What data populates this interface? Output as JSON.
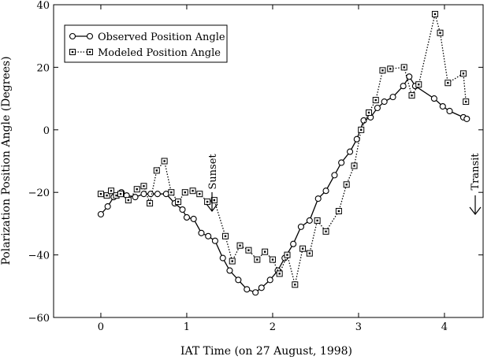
{
  "chart_data": {
    "type": "line",
    "title": "",
    "xlabel": "IAT Time (on 27 August, 1998)",
    "ylabel": "Polarization Position Angle (Degrees)",
    "xlim": [
      -0.55,
      4.45
    ],
    "ylim": [
      -60,
      40
    ],
    "x_ticks": [
      0,
      1,
      2,
      3,
      4
    ],
    "y_ticks": [
      -60,
      -40,
      -20,
      0,
      20,
      40
    ],
    "x_tick_labels": [
      "0",
      "1",
      "2",
      "3",
      "4"
    ],
    "y_tick_labels": [
      "−60",
      "−40",
      "−20",
      "0",
      "20",
      "40"
    ],
    "legend_position": "top-left",
    "series": [
      {
        "name": "Observed Position Angle",
        "marker": "circle",
        "line_style": "solid",
        "x": [
          0.0,
          0.08,
          0.15,
          0.24,
          0.3,
          0.4,
          0.5,
          0.58,
          0.66,
          0.76,
          0.86,
          0.95,
          1.0,
          1.08,
          1.17,
          1.25,
          1.33,
          1.42,
          1.5,
          1.6,
          1.7,
          1.8,
          1.87,
          1.97,
          2.06,
          2.14,
          2.24,
          2.33,
          2.43,
          2.53,
          2.62,
          2.72,
          2.8,
          2.9,
          2.98,
          3.06,
          3.14,
          3.22,
          3.3,
          3.4,
          3.52,
          3.59,
          3.66,
          3.88,
          3.98,
          4.06,
          4.22,
          4.26
        ],
        "y": [
          -27,
          -24.5,
          -21.5,
          -20,
          -21,
          -21.5,
          -20.5,
          -20.5,
          -20.5,
          -20.5,
          -23.5,
          -25.5,
          -28,
          -28.5,
          -33,
          -34,
          -35.5,
          -41,
          -45,
          -48,
          -51,
          -52,
          -50.5,
          -48,
          -45,
          -41,
          -36.5,
          -31,
          -29,
          -22,
          -19.5,
          -14.5,
          -10.5,
          -7,
          -3,
          3,
          4,
          7,
          9,
          10.5,
          14,
          17,
          14,
          10,
          7.5,
          6,
          4,
          3.5
        ]
      },
      {
        "name": "Modeled Position Angle",
        "marker": "square",
        "line_style": "dotted",
        "x": [
          0.0,
          0.07,
          0.12,
          0.18,
          0.23,
          0.32,
          0.42,
          0.5,
          0.57,
          0.65,
          0.74,
          0.82,
          0.9,
          0.98,
          1.07,
          1.15,
          1.24,
          1.32,
          1.45,
          1.53,
          1.62,
          1.72,
          1.82,
          1.91,
          2.0,
          2.08,
          2.17,
          2.26,
          2.35,
          2.43,
          2.52,
          2.62,
          2.77,
          2.86,
          2.95,
          3.03,
          3.12,
          3.2,
          3.28,
          3.37,
          3.53,
          3.62,
          3.7,
          3.89,
          3.95,
          4.04,
          4.22,
          4.25
        ],
        "y": [
          -20.5,
          -21,
          -19.5,
          -21,
          -20.5,
          -22.5,
          -19,
          -18,
          -23.5,
          -13,
          -10,
          -20,
          -23,
          -20,
          -19.5,
          -20.5,
          -23,
          -22.5,
          -34,
          -42,
          -37,
          -38.5,
          -41.5,
          -39,
          -41.5,
          -46,
          -40,
          -49.5,
          -38,
          -39.5,
          -29,
          -32.5,
          -26,
          -17.5,
          -11.5,
          0,
          5.5,
          9.5,
          19,
          19.5,
          20,
          11,
          14.5,
          37,
          31,
          15,
          18,
          9
        ]
      }
    ],
    "annotations": [
      {
        "text": "Sunset",
        "x": 1.55,
        "y": -19
      },
      {
        "text": "Transit",
        "x": 4.3,
        "y": -20
      }
    ],
    "grid": false
  }
}
